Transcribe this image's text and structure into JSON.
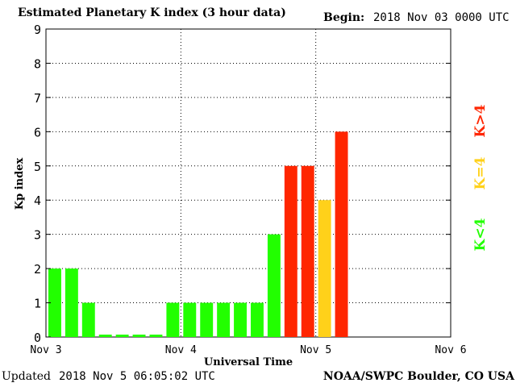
{
  "header": {
    "title": "Estimated Planetary K index (3 hour data)",
    "begin_label": "Begin:",
    "begin_value": "2018 Nov 03 0000 UTC"
  },
  "footer": {
    "updated_label": "Updated",
    "updated_value": "2018 Nov  5 06:05:02 UTC",
    "credit": "NOAA/SWPC Boulder, CO USA"
  },
  "colors": {
    "quiet": "#22ff00",
    "active": "#ffd11a",
    "storm": "#ff2600",
    "grid": "#000000"
  },
  "legend": {
    "low": "K<4",
    "mid": "K=4",
    "high": "K>4"
  },
  "chart_data": {
    "type": "bar",
    "title": "Estimated Planetary K index (3 hour data)",
    "xlabel": "Universal Time",
    "ylabel": "Kp index",
    "ylim": [
      0,
      9
    ],
    "yticks": [
      "0",
      "1",
      "2",
      "3",
      "4",
      "5",
      "6",
      "7",
      "8",
      "9"
    ],
    "xticks": [
      "Nov 3",
      "Nov 4",
      "Nov 5",
      "Nov 6"
    ],
    "grid": true,
    "legend_position": "right",
    "bin_hours": 3,
    "values": [
      2,
      2,
      1,
      0.07,
      0.07,
      0.07,
      0.07,
      1,
      1,
      1,
      1,
      1,
      1,
      3,
      5,
      5,
      4,
      6
    ]
  }
}
